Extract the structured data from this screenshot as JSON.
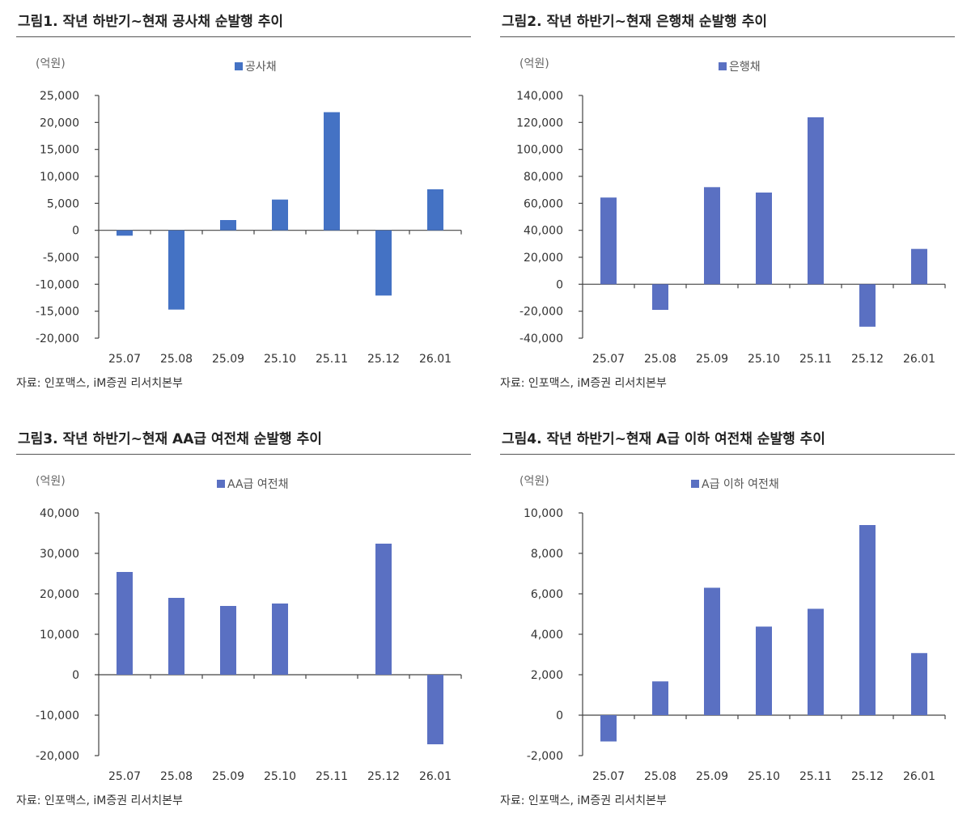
{
  "chart_data": [
    {
      "type": "bar",
      "title": "그림1.  작년 하반기~현재 공사채 순발행 추이",
      "unit": "(억원)",
      "legend": "공사채",
      "color": "#4472C4",
      "categories": [
        "25.07",
        "25.08",
        "25.09",
        "25.10",
        "25.11",
        "25.12",
        "26.01"
      ],
      "values": [
        -1000,
        -14700,
        1900,
        5700,
        21900,
        -12100,
        7600
      ],
      "ylim": [
        -20000,
        25000
      ],
      "ystep": 5000,
      "source": "자료: 인포맥스, iM증권 리서치본부"
    },
    {
      "type": "bar",
      "title": "그림2.  작년 하반기~현재 은행채 순발행 추이",
      "unit": "(억원)",
      "legend": "은행채",
      "color": "#5A70C2",
      "categories": [
        "25.07",
        "25.08",
        "25.09",
        "25.10",
        "25.11",
        "25.12",
        "26.01"
      ],
      "values": [
        64300,
        -19000,
        72000,
        68000,
        123800,
        -31500,
        26200
      ],
      "ylim": [
        -40000,
        140000
      ],
      "ystep": 20000,
      "source": "자료: 인포맥스, iM증권 리서치본부"
    },
    {
      "type": "bar",
      "title": "그림3.  작년 하반기~현재 AA급 여전채 순발행 추이",
      "unit": "(억원)",
      "legend": "AA급 여전채",
      "color": "#5A70C2",
      "categories": [
        "25.07",
        "25.08",
        "25.09",
        "25.10",
        "25.11",
        "25.12",
        "26.01"
      ],
      "values": [
        25400,
        19000,
        17000,
        17600,
        0,
        32400,
        -17200
      ],
      "ylim": [
        -20000,
        40000
      ],
      "ystep": 10000,
      "source": "자료: 인포맥스, iM증권 리서치본부"
    },
    {
      "type": "bar",
      "title": "그림4.  작년 하반기~현재 A급 이하 여전채 순발행 추이",
      "unit": "(억원)",
      "legend": "A급 이하 여전채",
      "color": "#5A70C2",
      "categories": [
        "25.07",
        "25.08",
        "25.09",
        "25.10",
        "25.11",
        "25.12",
        "26.01"
      ],
      "values": [
        -1300,
        1670,
        6300,
        4380,
        5260,
        9400,
        3070
      ],
      "ylim": [
        -2000,
        10000
      ],
      "ystep": 2000,
      "source": "자료: 인포맥스, iM증권 리서치본부"
    }
  ]
}
